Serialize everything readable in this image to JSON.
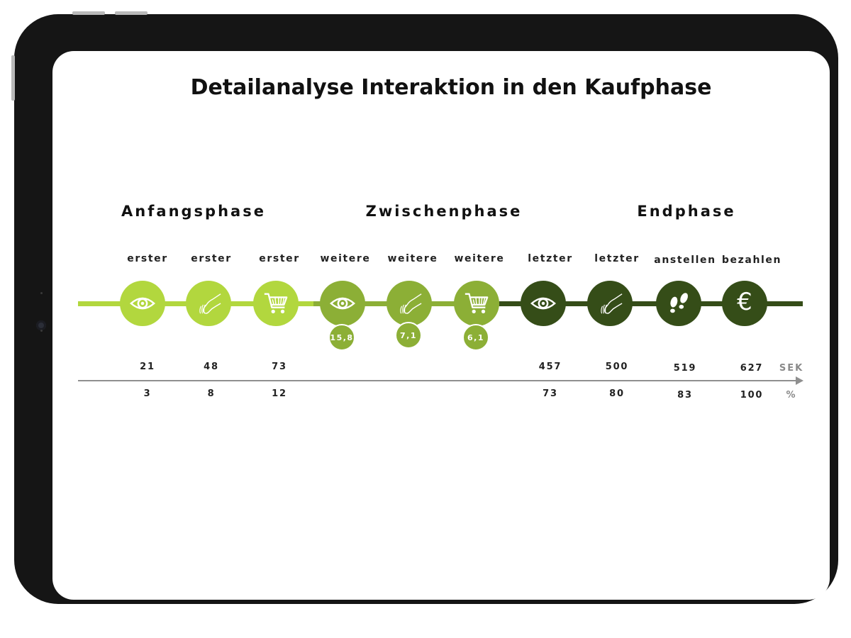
{
  "title": "Detailanalyse Interaktion in den Kaufphase",
  "phases": [
    {
      "label": "Anfangsphase"
    },
    {
      "label": "Zwischenphase"
    },
    {
      "label": "Endphase"
    }
  ],
  "colors": {
    "light_green": "#b2d73e",
    "mid_green": "#8caf36",
    "dark_green": "#354d18",
    "axis_gray": "#8f8f8f"
  },
  "steps": [
    {
      "label": "erster",
      "icon": "eye-icon",
      "color": "#b2d73e",
      "sek": "21",
      "percent": "3",
      "sub": ""
    },
    {
      "label": "erster",
      "icon": "hand-touch-icon",
      "color": "#b2d73e",
      "sek": "48",
      "percent": "8",
      "sub": ""
    },
    {
      "label": "erster",
      "icon": "shopping-cart-icon",
      "color": "#b2d73e",
      "sek": "73",
      "percent": "12",
      "sub": ""
    },
    {
      "label": "weitere",
      "icon": "eye-icon",
      "color": "#8caf36",
      "sek": "",
      "percent": "",
      "sub": "15,8"
    },
    {
      "label": "weitere",
      "icon": "hand-touch-icon",
      "color": "#8caf36",
      "sek": "",
      "percent": "",
      "sub": "7,1"
    },
    {
      "label": "weitere",
      "icon": "shopping-cart-icon",
      "color": "#8caf36",
      "sek": "",
      "percent": "",
      "sub": "6,1"
    },
    {
      "label": "letzter",
      "icon": "eye-icon",
      "color": "#354d18",
      "sek": "457",
      "percent": "73",
      "sub": ""
    },
    {
      "label": "letzter",
      "icon": "hand-touch-icon",
      "color": "#354d18",
      "sek": "500",
      "percent": "80",
      "sub": ""
    },
    {
      "label": "anstellen",
      "icon": "footprints-icon",
      "color": "#354d18",
      "sek": "519",
      "percent": "83",
      "sub": ""
    },
    {
      "label": "bezahlen",
      "icon": "euro-icon",
      "color": "#354d18",
      "sek": "627",
      "percent": "100",
      "sub": ""
    }
  ],
  "units": {
    "time": "SEK",
    "percent": "%"
  }
}
